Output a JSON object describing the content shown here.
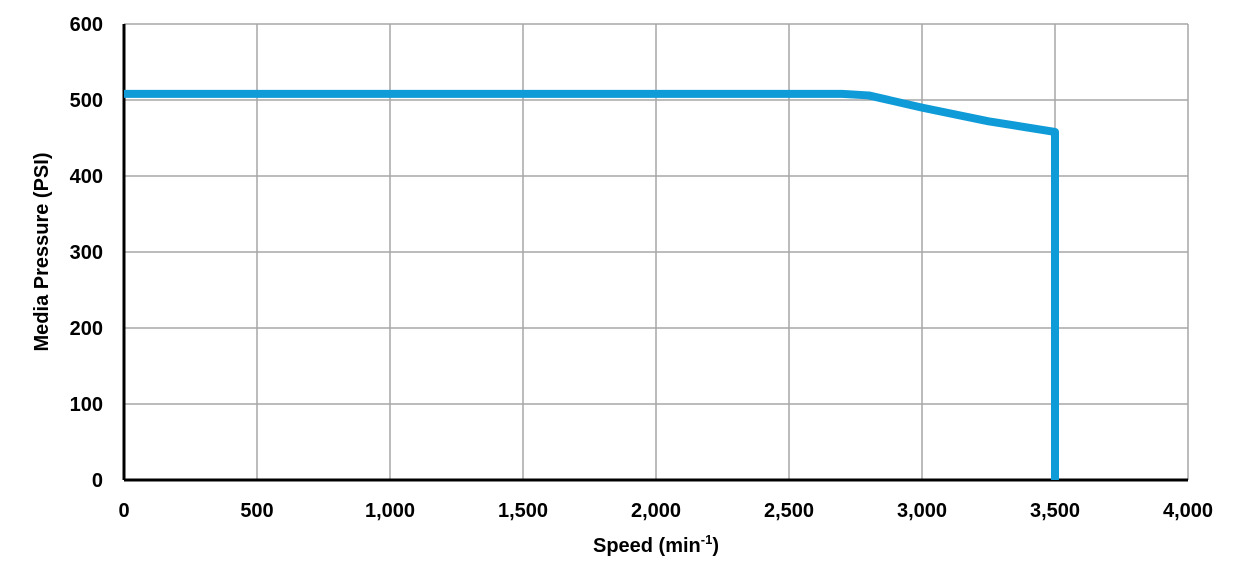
{
  "chart_data": {
    "type": "line",
    "title": "",
    "xlabel": {
      "main": "Speed (min",
      "sup": "-1",
      "close": ")"
    },
    "ylabel": "Media Pressure (PSI)",
    "xlim": [
      0,
      4000
    ],
    "ylim": [
      0,
      600
    ],
    "x_ticks": [
      0,
      500,
      1000,
      1500,
      2000,
      2500,
      3000,
      3500,
      4000
    ],
    "x_tick_labels": [
      "0",
      "500",
      "1,000",
      "1,500",
      "2,000",
      "2,500",
      "3,000",
      "3,500",
      "4,000"
    ],
    "y_ticks": [
      0,
      100,
      200,
      300,
      400,
      500,
      600
    ],
    "y_tick_labels": [
      "0",
      "100",
      "200",
      "300",
      "400",
      "500",
      "600"
    ],
    "grid": true,
    "legend": "none",
    "series": [
      {
        "color": "#0f9bd7",
        "x": [
          0,
          2700,
          2800,
          3000,
          3250,
          3500,
          3500
        ],
        "y": [
          508,
          508,
          506,
          490,
          472,
          458,
          0
        ]
      }
    ],
    "colors": {
      "grid": "#a6a6a6",
      "axis": "#000000",
      "line": "#0f9bd7"
    }
  }
}
